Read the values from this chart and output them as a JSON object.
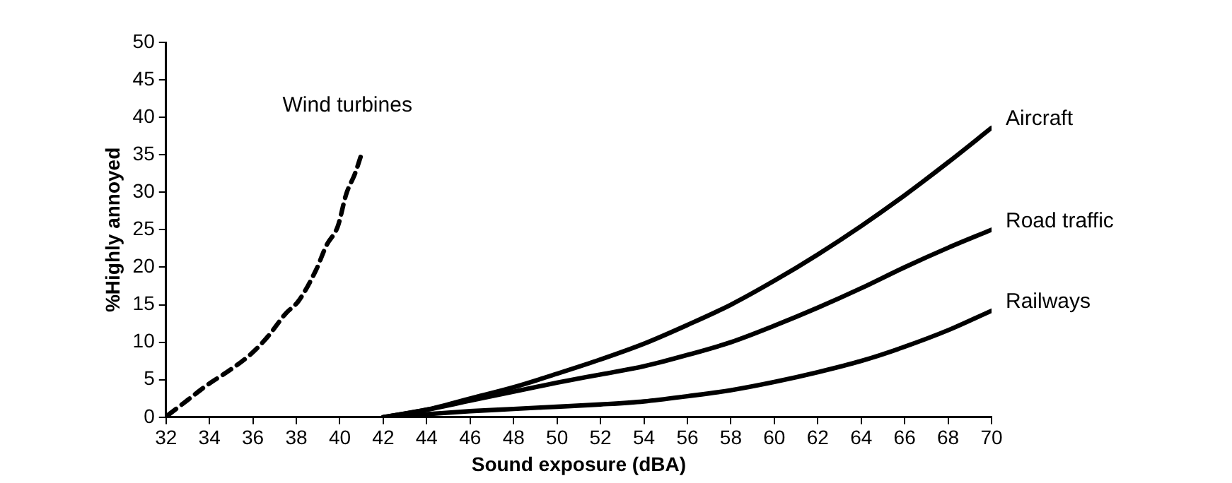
{
  "chart_data": {
    "type": "line",
    "xlabel": "Sound exposure (dBA)",
    "ylabel": "%Highly annoyed",
    "xlim": [
      32,
      70
    ],
    "xticks": [
      32,
      34,
      36,
      38,
      40,
      42,
      44,
      46,
      48,
      50,
      52,
      54,
      56,
      58,
      60,
      62,
      64,
      66,
      68,
      70
    ],
    "ylim": [
      0,
      50
    ],
    "yticks": [
      0,
      5,
      10,
      15,
      20,
      25,
      30,
      35,
      40,
      45,
      50
    ],
    "grid": false,
    "legend": false,
    "marker": "none",
    "series": [
      {
        "name": "Wind turbines",
        "color": "#000000",
        "line_style": "dashed",
        "x": [
          32.1,
          33.0,
          33.9,
          35.0,
          35.9,
          36.7,
          37.5,
          38.1,
          38.9,
          39.4,
          39.9,
          40.3,
          40.7,
          41.0
        ],
        "values": [
          0.3,
          2.3,
          4.3,
          6.4,
          8.4,
          10.8,
          13.8,
          15.5,
          19.6,
          23,
          25.4,
          29.8,
          32.5,
          35.1
        ]
      },
      {
        "name": "Aircraft",
        "color": "#000000",
        "line_style": "solid",
        "x": [
          42,
          44,
          46,
          48,
          50,
          52,
          54,
          56,
          58,
          60,
          62,
          64,
          66,
          68,
          70
        ],
        "values": [
          0,
          1,
          2.5,
          4,
          5.8,
          7.7,
          9.8,
          12.3,
          15,
          18.2,
          21.7,
          25.5,
          29.6,
          34,
          38.6
        ]
      },
      {
        "name": "Road traffic",
        "color": "#000000",
        "line_style": "solid",
        "x": [
          42,
          44,
          46,
          48,
          50,
          52,
          54,
          56,
          58,
          60,
          62,
          64,
          66,
          68,
          70
        ],
        "values": [
          0,
          1,
          2.2,
          3.4,
          4.6,
          5.7,
          6.8,
          8.3,
          10,
          12.2,
          14.6,
          17.2,
          20,
          22.6,
          25
        ]
      },
      {
        "name": "Railways",
        "color": "#000000",
        "line_style": "solid",
        "x": [
          42,
          44,
          46,
          48,
          50,
          52,
          54,
          56,
          58,
          60,
          62,
          64,
          66,
          68,
          70
        ],
        "values": [
          0,
          0.4,
          0.8,
          1.1,
          1.4,
          1.7,
          2.1,
          2.8,
          3.6,
          4.7,
          6,
          7.5,
          9.4,
          11.6,
          14.2
        ]
      }
    ]
  }
}
